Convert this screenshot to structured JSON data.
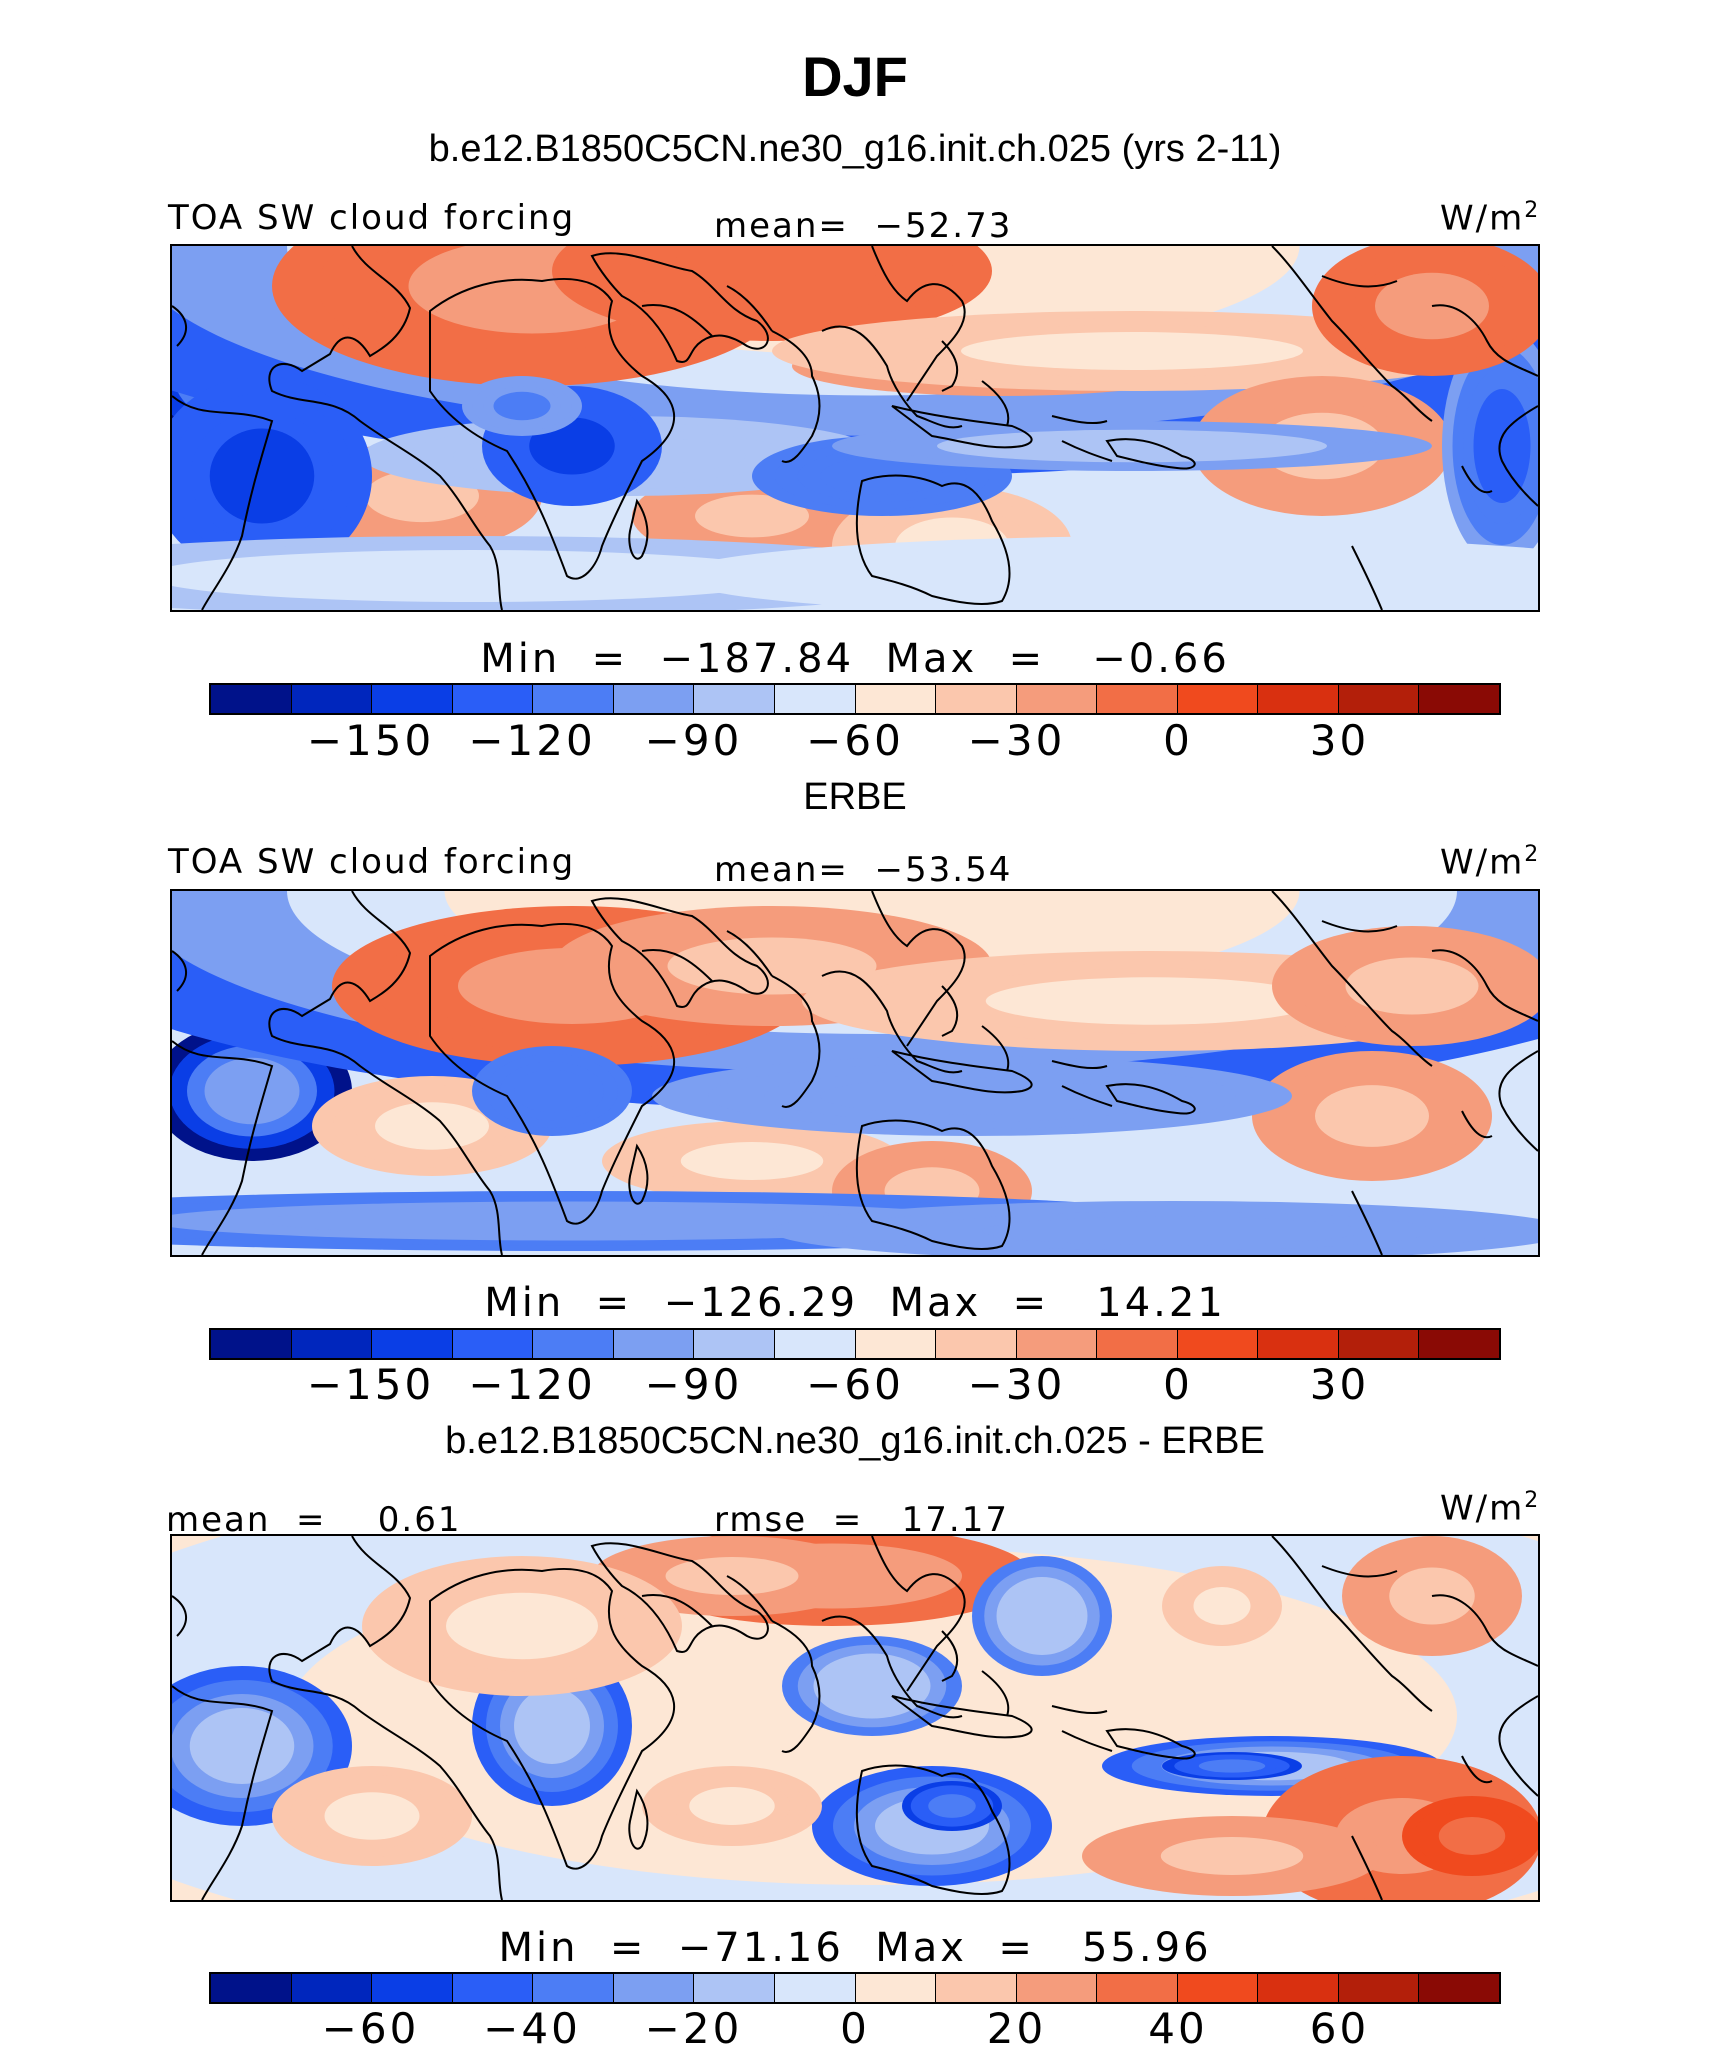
{
  "main_title": "DJF",
  "colors": {
    "palette": [
      "#00128a",
      "#0026bd",
      "#0a3ee6",
      "#2a5ef7",
      "#4c7df5",
      "#7c9ff2",
      "#adc4f5",
      "#d8e6fb",
      "#fde7d5",
      "#fbc7ad",
      "#f59c7c",
      "#f26e46",
      "#f04a1e",
      "#d93010",
      "#b31f0a",
      "#8a0a05"
    ],
    "coast": "#000000"
  },
  "panels": [
    {
      "title": "b.e12.B1850C5CN.ne30_g16.init.ch.025 (yrs 2-11)",
      "left_label": "TOA SW cloud forcing",
      "center_label": "mean=  −52.73",
      "units_base": "W/m",
      "units_sup": "2",
      "minmax": "Min  =  −187.84  Max  =   −0.66",
      "ticks": [
        "−150",
        "−120",
        "−90",
        "−60",
        "−30",
        "0",
        "30"
      ]
    },
    {
      "title": "ERBE",
      "left_label": "TOA SW cloud forcing",
      "center_label": "mean=  −53.54",
      "units_base": "W/m",
      "units_sup": "2",
      "minmax": "Min  =  −126.29  Max  =   14.21",
      "ticks": [
        "−150",
        "−120",
        "−90",
        "−60",
        "−30",
        "0",
        "30"
      ]
    },
    {
      "title": "b.e12.B1850C5CN.ne30_g16.init.ch.025 - ERBE",
      "left_label": "mean  =    0.61",
      "center_label": "rmse  =   17.17",
      "units_base": "W/m",
      "units_sup": "2",
      "minmax": "Min  =  −71.16  Max  =   55.96",
      "ticks": [
        "−60",
        "−40",
        "−20",
        "0",
        "20",
        "40",
        "60"
      ]
    }
  ]
}
